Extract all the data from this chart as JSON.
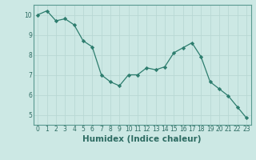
{
  "x": [
    0,
    1,
    2,
    3,
    4,
    5,
    6,
    7,
    8,
    9,
    10,
    11,
    12,
    13,
    14,
    15,
    16,
    17,
    18,
    19,
    20,
    21,
    22,
    23
  ],
  "y": [
    10.0,
    10.2,
    9.7,
    9.8,
    9.5,
    8.7,
    8.4,
    7.0,
    6.65,
    6.45,
    7.0,
    7.0,
    7.35,
    7.25,
    7.4,
    8.1,
    8.35,
    8.6,
    7.9,
    6.65,
    6.3,
    5.95,
    5.4,
    4.85
  ],
  "line_color": "#2d7d6e",
  "marker": "D",
  "marker_size": 2.2,
  "bg_color": "#cce8e4",
  "grid_major_color": "#b8d8d4",
  "grid_minor_color": "#d4ecea",
  "xlabel": "Humidex (Indice chaleur)",
  "ylim": [
    4.5,
    10.5
  ],
  "xlim": [
    -0.5,
    23.5
  ],
  "yticks": [
    5,
    6,
    7,
    8,
    9,
    10
  ],
  "xticks": [
    0,
    1,
    2,
    3,
    4,
    5,
    6,
    7,
    8,
    9,
    10,
    11,
    12,
    13,
    14,
    15,
    16,
    17,
    18,
    19,
    20,
    21,
    22,
    23
  ],
  "tick_label_fontsize": 5.5,
  "xlabel_fontsize": 7.5,
  "spine_color": "#5a9a90"
}
